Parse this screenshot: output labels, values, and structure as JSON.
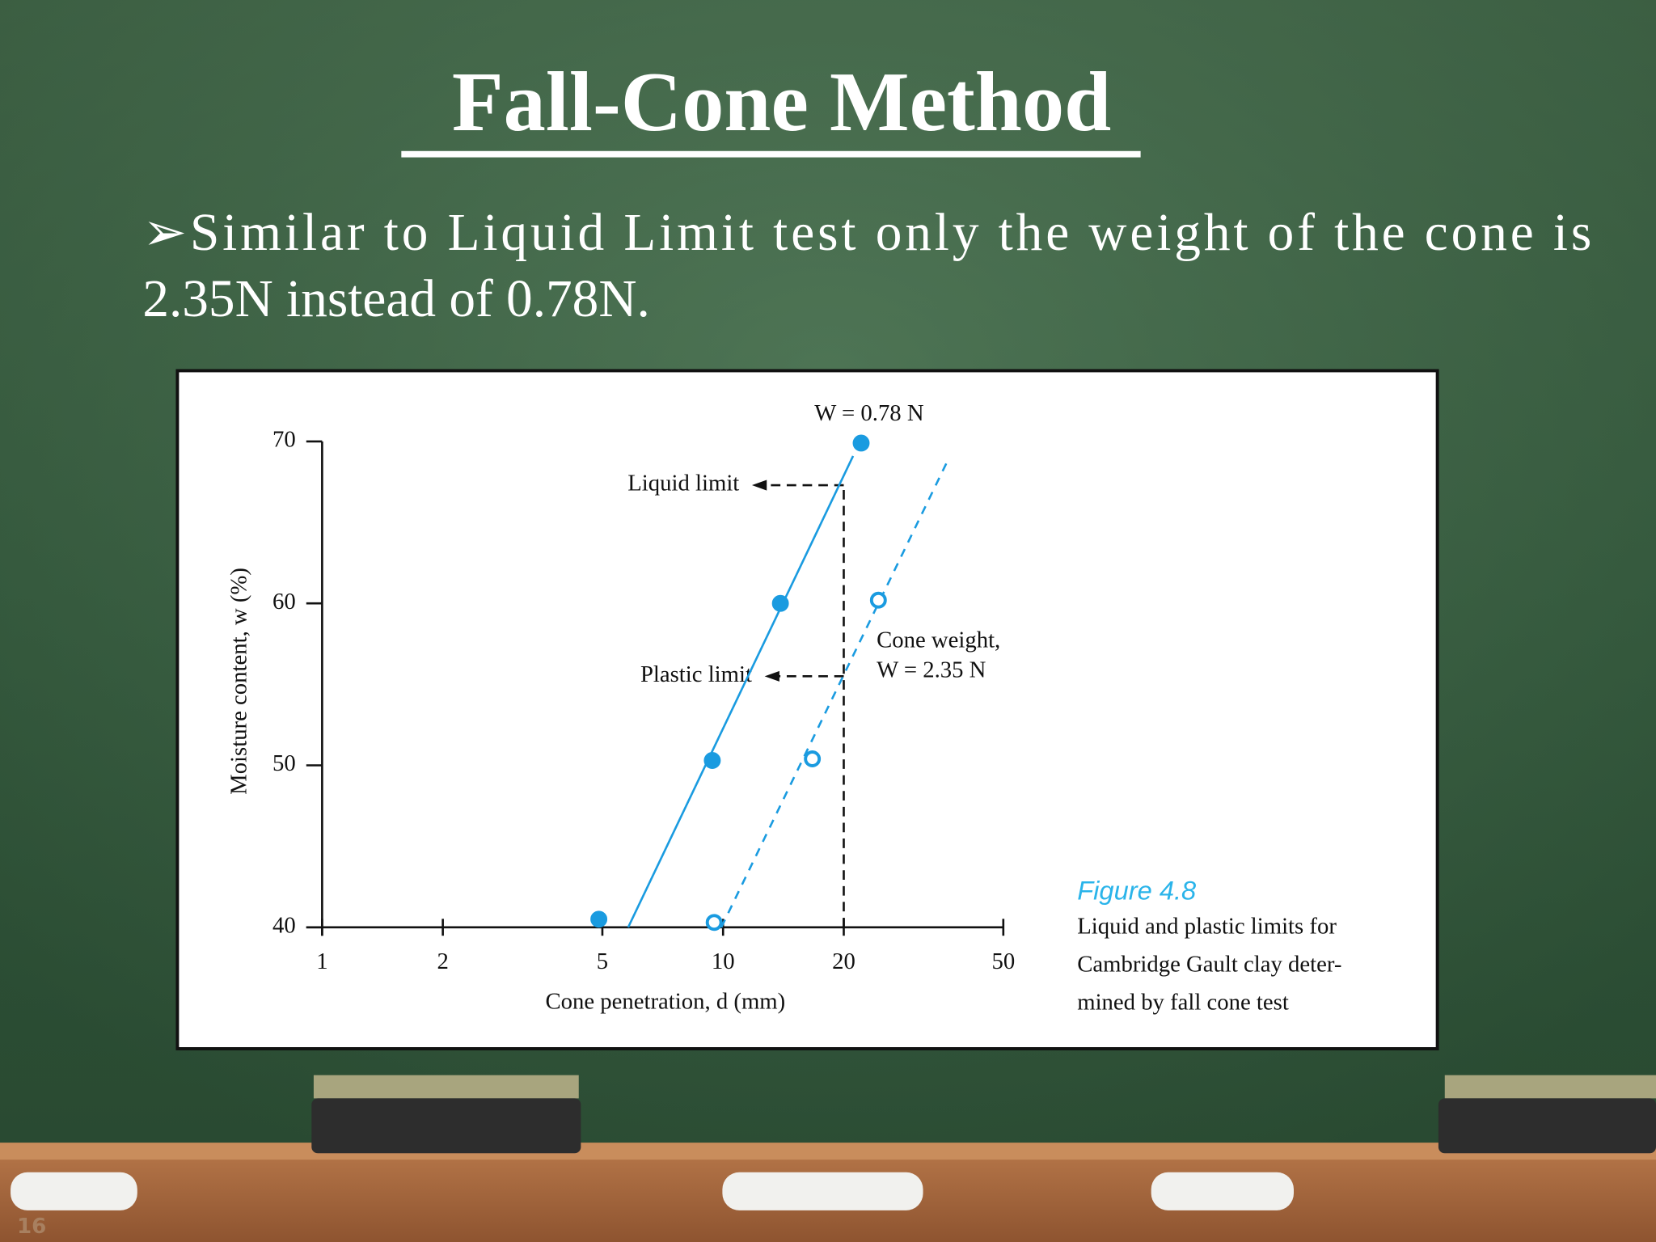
{
  "slide": {
    "title": "Fall-Cone Method",
    "bullet_lines": [
      "➢Similar to Liquid Limit test only the weight of the cone is",
      "2.35N instead of 0.78N."
    ],
    "page_number": "16"
  },
  "chart_data": {
    "type": "scatter",
    "x_label": "Cone penetration, d (mm)",
    "y_label": "Moisture content, w (%)",
    "xscale": "log",
    "xlim": [
      1,
      50
    ],
    "ylim": [
      40,
      70
    ],
    "xticks": [
      1,
      2,
      5,
      10,
      20,
      50
    ],
    "yticks": [
      40,
      50,
      60,
      70
    ],
    "series": [
      {
        "name": "W = 0.78 N",
        "color": "#1a9be0",
        "marker": "filled",
        "line": "solid",
        "x": [
          4.9,
          9.4,
          13.9,
          22.1
        ],
        "values": [
          40.5,
          50.3,
          60.0,
          69.9
        ],
        "fit": {
          "x": [
            5.8,
            21.1
          ],
          "values": [
            40,
            69.1
          ]
        }
      },
      {
        "name": "W = 2.35 N",
        "color": "#1a9be0",
        "marker": "open",
        "line": "dashed",
        "x": [
          9.5,
          16.7,
          24.4
        ],
        "values": [
          40.3,
          50.4,
          60.2
        ],
        "fit": {
          "x": [
            9.9,
            36.3
          ],
          "values": [
            40,
            68.8
          ]
        }
      }
    ],
    "annotation": "Cone weight,",
    "reference_x": 20,
    "limits": [
      {
        "label": "Liquid limit",
        "value": 67.3
      },
      {
        "label": "Plastic limit",
        "value": 55.5
      }
    ],
    "caption": {
      "title": "Figure 4.8",
      "lines": [
        "Liquid and plastic limits for",
        "Cambridge Gault clay deter-",
        "mined by fall cone test"
      ]
    }
  }
}
